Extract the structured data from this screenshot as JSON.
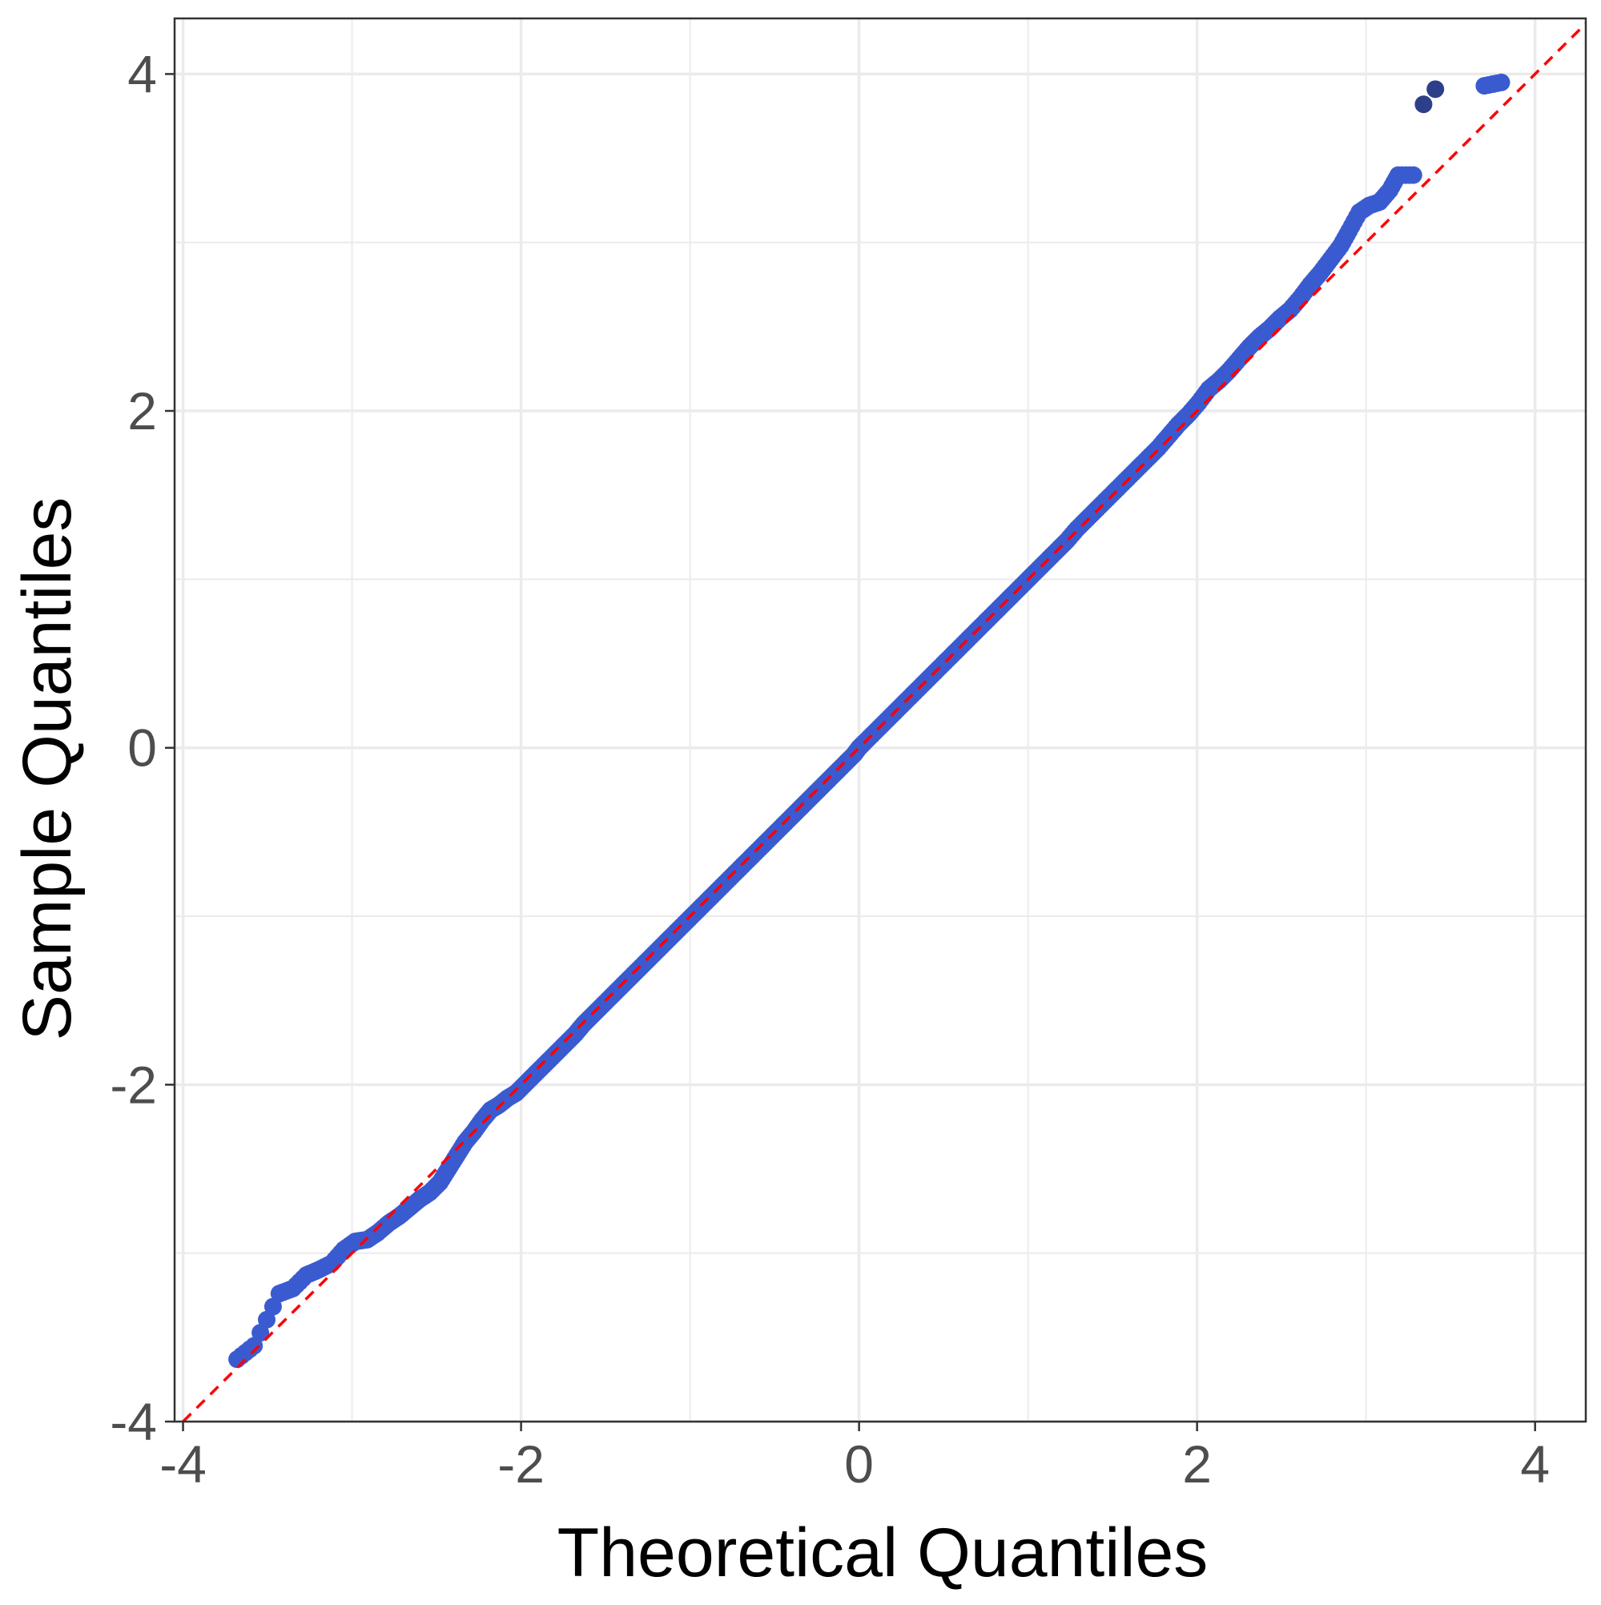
{
  "chart_data": {
    "type": "scatter",
    "title": "",
    "xlabel": "Theoretical Quantiles",
    "ylabel": "Sample Quantiles",
    "xlim": [
      -4.05,
      4.3
    ],
    "ylim": [
      -4.0,
      4.33
    ],
    "x_ticks": [
      {
        "value": -4,
        "label": "-4"
      },
      {
        "value": -2,
        "label": "-2"
      },
      {
        "value": 0,
        "label": "0"
      },
      {
        "value": 2,
        "label": "2"
      },
      {
        "value": 4,
        "label": "4"
      }
    ],
    "y_ticks": [
      {
        "value": -4,
        "label": "-4"
      },
      {
        "value": -2,
        "label": "-2"
      },
      {
        "value": 0,
        "label": "0"
      },
      {
        "value": 2,
        "label": "2"
      },
      {
        "value": 4,
        "label": "4"
      }
    ],
    "grid": true,
    "reference_line": {
      "slope": 1,
      "intercept": 0,
      "style": "dashed",
      "color": "#ff0000"
    },
    "colors": {
      "points": "#3a5bd0",
      "points_dark": "#2c3f8a",
      "ref_line": "#ff0000",
      "grid": "#ebebeb",
      "panel_border": "#333333"
    },
    "series": [
      {
        "points": [
          [
            -3.68,
            -3.63
          ],
          [
            -3.58,
            -3.55
          ],
          [
            -3.43,
            -3.24
          ],
          [
            -3.35,
            -3.21
          ],
          [
            -3.27,
            -3.13
          ],
          [
            -3.2,
            -3.1
          ],
          [
            -3.12,
            -3.06
          ],
          [
            -3.05,
            -2.98
          ],
          [
            -2.98,
            -2.93
          ],
          [
            -2.91,
            -2.92
          ],
          [
            -2.85,
            -2.88
          ],
          [
            -2.78,
            -2.82
          ],
          [
            -2.72,
            -2.78
          ],
          [
            -2.66,
            -2.73
          ],
          [
            -2.6,
            -2.68
          ],
          [
            -2.54,
            -2.64
          ],
          [
            -2.48,
            -2.58
          ],
          [
            -2.43,
            -2.5
          ],
          [
            -2.38,
            -2.42
          ],
          [
            -2.33,
            -2.34
          ],
          [
            -2.28,
            -2.28
          ],
          [
            -2.23,
            -2.21
          ],
          [
            -2.18,
            -2.15
          ],
          [
            -2.13,
            -2.12
          ],
          [
            -2.08,
            -2.08
          ],
          [
            -2.03,
            -2.05
          ],
          [
            -1.98,
            -2.0
          ],
          [
            -1.93,
            -1.95
          ],
          [
            -1.88,
            -1.9
          ],
          [
            -1.83,
            -1.85
          ],
          [
            -1.78,
            -1.8
          ],
          [
            -1.73,
            -1.75
          ],
          [
            -1.68,
            -1.7
          ],
          [
            -1.63,
            -1.64
          ],
          [
            -1.58,
            -1.59
          ],
          [
            -1.53,
            -1.54
          ],
          [
            -1.47,
            -1.48
          ],
          [
            -1.41,
            -1.42
          ],
          [
            -1.35,
            -1.36
          ],
          [
            -1.29,
            -1.3
          ],
          [
            -1.23,
            -1.24
          ],
          [
            -1.17,
            -1.18
          ],
          [
            -1.11,
            -1.12
          ],
          [
            -1.05,
            -1.06
          ],
          [
            -0.99,
            -1.0
          ],
          [
            -0.93,
            -0.94
          ],
          [
            -0.87,
            -0.88
          ],
          [
            -0.81,
            -0.82
          ],
          [
            -0.75,
            -0.76
          ],
          [
            -0.69,
            -0.7
          ],
          [
            -0.63,
            -0.64
          ],
          [
            -0.57,
            -0.58
          ],
          [
            -0.51,
            -0.52
          ],
          [
            -0.45,
            -0.46
          ],
          [
            -0.39,
            -0.4
          ],
          [
            -0.33,
            -0.34
          ],
          [
            -0.27,
            -0.28
          ],
          [
            -0.21,
            -0.22
          ],
          [
            -0.15,
            -0.16
          ],
          [
            -0.09,
            -0.1
          ],
          [
            -0.03,
            -0.04
          ],
          [
            0.0,
            0.0
          ],
          [
            0.03,
            0.03
          ],
          [
            0.09,
            0.09
          ],
          [
            0.15,
            0.15
          ],
          [
            0.21,
            0.21
          ],
          [
            0.27,
            0.27
          ],
          [
            0.33,
            0.33
          ],
          [
            0.39,
            0.39
          ],
          [
            0.45,
            0.45
          ],
          [
            0.51,
            0.51
          ],
          [
            0.57,
            0.57
          ],
          [
            0.63,
            0.63
          ],
          [
            0.69,
            0.69
          ],
          [
            0.75,
            0.75
          ],
          [
            0.81,
            0.81
          ],
          [
            0.87,
            0.87
          ],
          [
            0.93,
            0.93
          ],
          [
            0.99,
            0.99
          ],
          [
            1.05,
            1.05
          ],
          [
            1.11,
            1.11
          ],
          [
            1.17,
            1.17
          ],
          [
            1.23,
            1.23
          ],
          [
            1.29,
            1.3
          ],
          [
            1.35,
            1.36
          ],
          [
            1.41,
            1.42
          ],
          [
            1.47,
            1.48
          ],
          [
            1.53,
            1.54
          ],
          [
            1.59,
            1.6
          ],
          [
            1.65,
            1.66
          ],
          [
            1.71,
            1.72
          ],
          [
            1.77,
            1.78
          ],
          [
            1.83,
            1.85
          ],
          [
            1.89,
            1.92
          ],
          [
            1.95,
            1.98
          ],
          [
            2.01,
            2.05
          ],
          [
            2.07,
            2.13
          ],
          [
            2.13,
            2.18
          ],
          [
            2.19,
            2.24
          ],
          [
            2.25,
            2.31
          ],
          [
            2.31,
            2.38
          ],
          [
            2.37,
            2.44
          ],
          [
            2.43,
            2.49
          ],
          [
            2.49,
            2.55
          ],
          [
            2.55,
            2.6
          ],
          [
            2.61,
            2.67
          ],
          [
            2.67,
            2.75
          ],
          [
            2.73,
            2.82
          ],
          [
            2.79,
            2.9
          ],
          [
            2.85,
            2.98
          ],
          [
            2.9,
            3.07
          ],
          [
            2.96,
            3.18
          ],
          [
            3.02,
            3.22
          ],
          [
            3.08,
            3.24
          ],
          [
            3.14,
            3.31
          ],
          [
            3.19,
            3.4
          ],
          [
            3.28,
            3.4
          ],
          [
            3.7,
            3.93
          ],
          [
            3.8,
            3.95
          ]
        ]
      },
      {
        "points": [
          [
            3.34,
            3.82
          ],
          [
            3.41,
            3.91
          ]
        ]
      }
    ]
  }
}
